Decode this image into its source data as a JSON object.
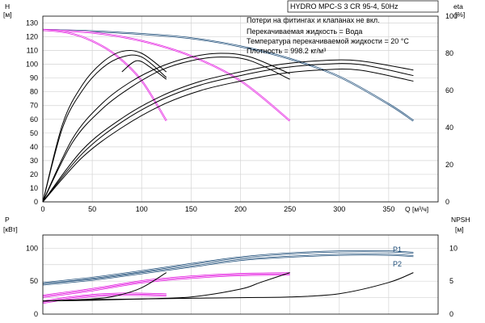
{
  "chart_data": [
    {
      "type": "line",
      "title": "HYDRO MPC-S 3 CR 95-4, 50Hz",
      "notes": [
        "Потери на фитингах и клапанах не вкл.",
        "Перекачиваемая жидкость = Вода",
        "Температура перекачиваемой жидкости = 20 °C",
        "Плотность = 998.2 кг/м³"
      ],
      "xlabel": "Q [м³/ч]",
      "xlim": [
        0,
        400
      ],
      "xticks": [
        0,
        50,
        100,
        150,
        200,
        250,
        300,
        350
      ],
      "left_axis": {
        "label": "H",
        "unit": "[м]",
        "ylim": [
          0,
          135
        ],
        "ticks": [
          0,
          10,
          20,
          30,
          40,
          50,
          60,
          70,
          80,
          90,
          100,
          110,
          120,
          130
        ]
      },
      "right_axis": {
        "label": "eta",
        "unit": "[%]",
        "ylim": [
          0,
          100
        ],
        "ticks": [
          0,
          20,
          40,
          60,
          80,
          100
        ]
      },
      "grid": true,
      "series": [
        {
          "axis": "H",
          "color": "#1f4e79",
          "x": [
            0,
            50,
            100,
            150,
            200,
            250,
            300,
            350,
            375
          ],
          "y": [
            125,
            124,
            122,
            119,
            113,
            104,
            91,
            71,
            59
          ]
        },
        {
          "axis": "H",
          "color": "#e41ce0",
          "x": [
            0,
            50,
            100,
            150,
            200,
            250
          ],
          "y": [
            125,
            123,
            117,
            106,
            88,
            59
          ]
        },
        {
          "axis": "H",
          "color": "#e41ce0",
          "x": [
            0,
            25,
            50,
            75,
            100,
            125
          ],
          "y": [
            125,
            123,
            117,
            106,
            88,
            59
          ]
        },
        {
          "axis": "eta",
          "color": "#000000",
          "x": [
            0,
            40,
            80,
            120,
            160,
            200,
            240,
            280,
            320,
            375
          ],
          "y": [
            0,
            24,
            40,
            52,
            60,
            65,
            69,
            71,
            71,
            65
          ]
        },
        {
          "axis": "eta",
          "color": "#000000",
          "x": [
            0,
            40,
            80,
            120,
            160,
            200,
            240,
            280,
            320,
            375
          ],
          "y": [
            0,
            26,
            43,
            55,
            63,
            68,
            72,
            74,
            74,
            68
          ]
        },
        {
          "axis": "eta",
          "color": "#000000",
          "x": [
            0,
            40,
            80,
            120,
            160,
            200,
            240,
            280,
            320,
            375
          ],
          "y": [
            0,
            28,
            45,
            57,
            65,
            70,
            74,
            76,
            76,
            71
          ]
        },
        {
          "axis": "eta",
          "color": "#000000",
          "x": [
            0,
            30,
            60,
            90,
            120,
            150,
            180,
            210,
            250
          ],
          "y": [
            0,
            32,
            50,
            62,
            71,
            76,
            78,
            76,
            66
          ]
        },
        {
          "axis": "eta",
          "color": "#000000",
          "x": [
            0,
            30,
            60,
            90,
            120,
            150,
            180,
            210,
            250
          ],
          "y": [
            0,
            34,
            53,
            65,
            73,
            78,
            80,
            78,
            69
          ]
        },
        {
          "axis": "eta",
          "color": "#000000",
          "x": [
            0,
            20,
            40,
            60,
            80,
            100,
            125
          ],
          "y": [
            0,
            40,
            60,
            72,
            78,
            78,
            67
          ]
        },
        {
          "axis": "eta",
          "color": "#000000",
          "x": [
            0,
            20,
            40,
            60,
            80,
            100,
            125
          ],
          "y": [
            0,
            42,
            63,
            75,
            81,
            80,
            70
          ]
        },
        {
          "axis": "eta",
          "color": "#000000",
          "x": [
            80,
            95,
            110,
            125
          ],
          "y": [
            70,
            76,
            72,
            66
          ]
        }
      ]
    },
    {
      "type": "line",
      "xlim": [
        0,
        400
      ],
      "left_axis": {
        "label": "P",
        "unit": "[кВт]",
        "ylim": [
          0,
          120
        ],
        "ticks": [
          0,
          50,
          100
        ]
      },
      "right_axis": {
        "label": "NPSH",
        "unit": "[м]",
        "ylim": [
          0,
          12
        ],
        "ticks": [
          0,
          5,
          10
        ]
      },
      "grid": true,
      "series": [
        {
          "name": "P1",
          "axis": "P",
          "color": "#1f4e79",
          "x": [
            0,
            50,
            100,
            150,
            200,
            250,
            300,
            350,
            375
          ],
          "y": [
            47,
            55,
            65,
            76,
            86,
            92,
            95,
            95,
            93
          ]
        },
        {
          "name": "P2",
          "axis": "P",
          "color": "#1f4e79",
          "x": [
            0,
            50,
            100,
            150,
            200,
            250,
            300,
            350,
            375
          ],
          "y": [
            45,
            52,
            62,
            72,
            82,
            87,
            90,
            90,
            88
          ]
        },
        {
          "axis": "P",
          "color": "#e41ce0",
          "x": [
            0,
            50,
            100,
            150,
            200,
            250
          ],
          "y": [
            28,
            38,
            50,
            57,
            61,
            62
          ]
        },
        {
          "axis": "P",
          "color": "#e41ce0",
          "x": [
            0,
            50,
            100,
            150,
            200,
            250
          ],
          "y": [
            26,
            36,
            48,
            55,
            59,
            60
          ]
        },
        {
          "axis": "P",
          "color": "#e41ce0",
          "x": [
            0,
            25,
            50,
            75,
            100,
            125
          ],
          "y": [
            19,
            25,
            29,
            31,
            31,
            30
          ]
        },
        {
          "axis": "P",
          "color": "#e41ce0",
          "x": [
            0,
            25,
            50,
            75,
            100,
            125
          ],
          "y": [
            17,
            23,
            27,
            29,
            29,
            28
          ]
        },
        {
          "axis": "NPSH",
          "color": "#000000",
          "x": [
            0,
            50,
            100,
            150,
            200,
            250,
            300,
            350,
            375
          ],
          "y": [
            2.0,
            2.2,
            2.3,
            2.4,
            2.5,
            2.6,
            3.1,
            4.8,
            6.3
          ]
        },
        {
          "axis": "NPSH",
          "color": "#000000",
          "x": [
            0,
            50,
            100,
            150,
            200,
            220,
            250
          ],
          "y": [
            2.0,
            2.1,
            2.3,
            2.6,
            3.8,
            4.8,
            6.3
          ]
        },
        {
          "axis": "NPSH",
          "color": "#000000",
          "x": [
            0,
            50,
            75,
            100,
            125
          ],
          "y": [
            2.0,
            2.3,
            2.8,
            4.0,
            6.3
          ]
        }
      ]
    }
  ]
}
